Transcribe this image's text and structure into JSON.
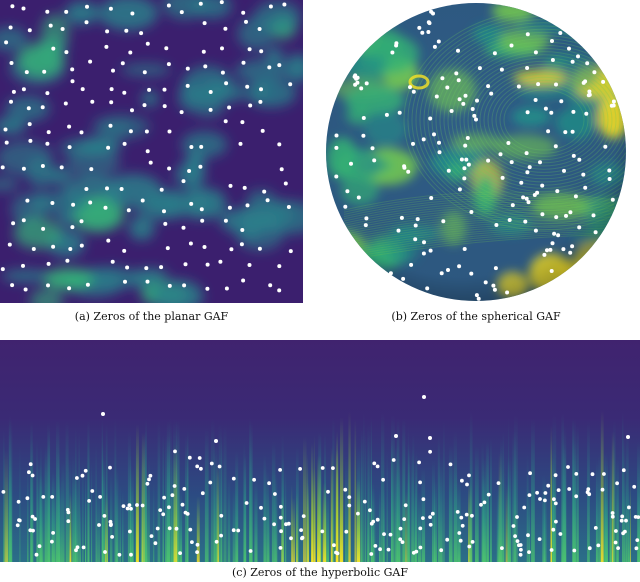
{
  "figure": {
    "panels": [
      {
        "id": "a",
        "caption": "(a) Zeros of the planar GAF"
      },
      {
        "id": "b",
        "caption": "(b) Zeros of the spherical GAF"
      },
      {
        "id": "c",
        "caption": "(c) Zeros of the hyperbolic GAF"
      }
    ],
    "colors": {
      "background_dark": "#3b1f6e",
      "mid_teal": "#2a7f8a",
      "green": "#35b779",
      "yellow": "#fde725",
      "zero_marker": "#ffffff"
    }
  }
}
